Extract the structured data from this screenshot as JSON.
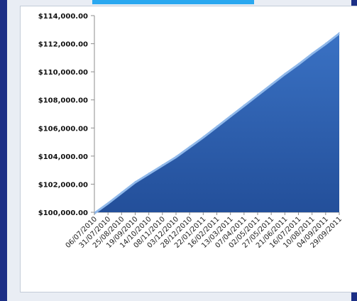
{
  "chart_data": {
    "type": "area",
    "title": "",
    "xlabel": "",
    "ylabel": "",
    "x": [
      "06/07/2010",
      "31/07/2010",
      "25/08/2010",
      "19/09/2010",
      "14/10/2010",
      "08/11/2010",
      "03/12/2010",
      "28/12/2010",
      "22/01/2011",
      "16/02/2011",
      "13/03/2011",
      "07/04/2011",
      "02/05/2011",
      "27/05/2011",
      "21/06/2011",
      "16/07/2011",
      "10/08/2011",
      "04/09/2011",
      "29/09/2011"
    ],
    "y_ticks": [
      "$100,000.00",
      "$102,000.00",
      "$104,000.00",
      "$106,000.00",
      "$108,000.00",
      "$110,000.00",
      "$112,000.00",
      "$114,000.00"
    ],
    "ylim": [
      100000,
      114000
    ],
    "series": [
      {
        "values": [
          100000,
          100700,
          101450,
          102200,
          102800,
          103400,
          104000,
          104700,
          105400,
          106150,
          106900,
          107650,
          108400,
          109150,
          109900,
          110600,
          111350,
          112050,
          112800
        ]
      }
    ],
    "grid": false,
    "legend": "none",
    "fill_color": "#2f64b4",
    "edge_color": "#8fb8ea"
  }
}
